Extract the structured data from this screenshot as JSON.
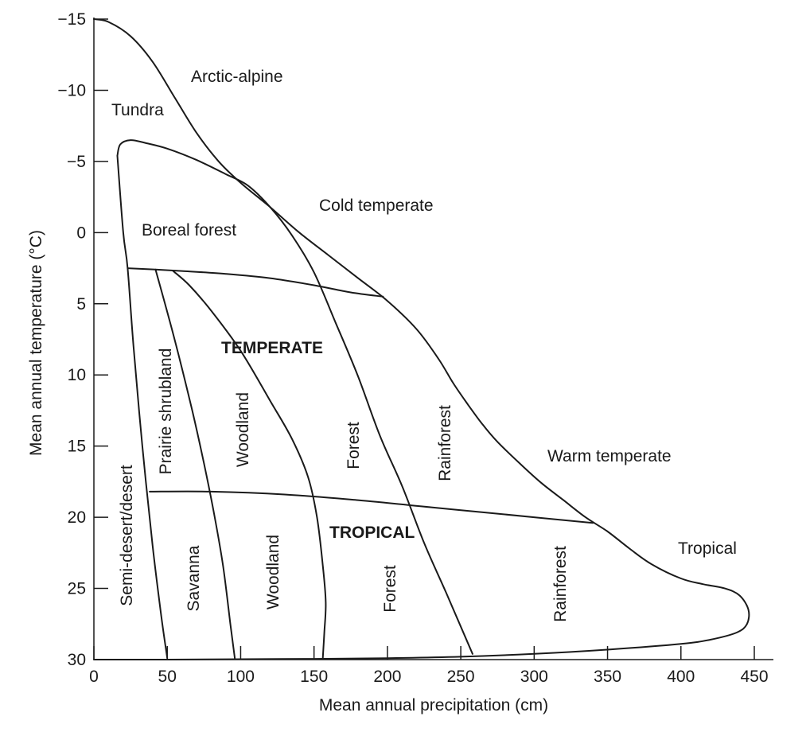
{
  "chart_data": {
    "type": "diagram",
    "xlabel": "Mean annual precipitation (cm)",
    "ylabel": "Mean annual temperature (°C)",
    "xlim": [
      0,
      450
    ],
    "ylim": [
      -15,
      30
    ],
    "y_axis_inverted": true,
    "x_ticks": [
      0,
      50,
      100,
      150,
      200,
      250,
      300,
      350,
      400,
      450
    ],
    "y_ticks": [
      -15,
      -10,
      -5,
      0,
      5,
      10,
      15,
      20,
      25,
      30
    ],
    "y_tick_labels": [
      "−15",
      "−10",
      "−5",
      "0",
      "5",
      "10",
      "15",
      "20",
      "25",
      "30"
    ],
    "grid": false,
    "boundaries": [
      {
        "id": "outer",
        "points": [
          [
            0,
            -15
          ],
          [
            10,
            -14.8
          ],
          [
            25,
            -13.8
          ],
          [
            40,
            -12
          ],
          [
            55,
            -9.5
          ],
          [
            70,
            -7
          ],
          [
            85,
            -5
          ],
          [
            100,
            -3.5
          ],
          [
            120,
            -1.8
          ],
          [
            140,
            0
          ],
          [
            160,
            1.6
          ],
          [
            180,
            3.2
          ],
          [
            200,
            4.8
          ],
          [
            220,
            6.8
          ],
          [
            235,
            8.9
          ],
          [
            245,
            10.6
          ],
          [
            255,
            12.1
          ],
          [
            265,
            13.5
          ],
          [
            275,
            14.7
          ],
          [
            290,
            16.2
          ],
          [
            305,
            17.6
          ],
          [
            320,
            18.8
          ],
          [
            335,
            20
          ],
          [
            350,
            21
          ],
          [
            365,
            22.2
          ],
          [
            380,
            23.3
          ],
          [
            400,
            24.3
          ],
          [
            415,
            24.7
          ],
          [
            430,
            25
          ],
          [
            440,
            25.5
          ],
          [
            446,
            26.5
          ],
          [
            445,
            27.5
          ],
          [
            438,
            28.1
          ],
          [
            420,
            28.6
          ],
          [
            400,
            28.9
          ],
          [
            350,
            29.3
          ],
          [
            300,
            29.6
          ],
          [
            250,
            29.8
          ],
          [
            200,
            29.9
          ],
          [
            150,
            29.95
          ],
          [
            100,
            29.97
          ],
          [
            50,
            30
          ],
          [
            0,
            30
          ]
        ]
      },
      {
        "id": "boreal-upper",
        "points": [
          [
            16,
            -5.4
          ],
          [
            18,
            -6.2
          ],
          [
            25,
            -6.5
          ],
          [
            35,
            -6.3
          ],
          [
            50,
            -5.9
          ],
          [
            70,
            -5.1
          ],
          [
            90,
            -4.1
          ],
          [
            105,
            -3.3
          ],
          [
            120,
            -1.8
          ],
          [
            135,
            0.2
          ],
          [
            150,
            2.8
          ],
          [
            165,
            6.4
          ],
          [
            180,
            10.1
          ],
          [
            195,
            14.3
          ],
          [
            210,
            17.8
          ],
          [
            225,
            21.8
          ],
          [
            240,
            25.3
          ],
          [
            258,
            29.6
          ]
        ]
      },
      {
        "id": "boreal-left",
        "points": [
          [
            16,
            -5.4
          ],
          [
            20,
            0
          ],
          [
            23,
            2.5
          ],
          [
            27,
            8
          ],
          [
            33,
            15
          ],
          [
            40,
            22
          ],
          [
            46,
            27
          ],
          [
            50,
            29.9
          ]
        ]
      },
      {
        "id": "temperate-top",
        "points": [
          [
            23,
            2.5
          ],
          [
            42,
            2.6
          ],
          [
            60,
            2.7
          ],
          [
            90,
            2.9
          ],
          [
            120,
            3.2
          ],
          [
            150,
            3.7
          ],
          [
            175,
            4.2
          ],
          [
            197,
            4.5
          ]
        ]
      },
      {
        "id": "prairie-woodland",
        "points": [
          [
            42,
            2.6
          ],
          [
            55,
            7.5
          ],
          [
            67,
            12.5
          ],
          [
            75,
            16.2
          ],
          [
            82,
            19.8
          ],
          [
            88,
            23.4
          ],
          [
            93,
            27.5
          ],
          [
            96,
            29.9
          ]
        ]
      },
      {
        "id": "woodland-forest",
        "points": [
          [
            54,
            2.7
          ],
          [
            65,
            3.7
          ],
          [
            80,
            5.5
          ],
          [
            100,
            8.3
          ],
          [
            120,
            11.8
          ],
          [
            135,
            14.5
          ],
          [
            146,
            17.2
          ],
          [
            152,
            20
          ],
          [
            156,
            23.4
          ],
          [
            158,
            26
          ],
          [
            157,
            28.1
          ],
          [
            156,
            29.9
          ]
        ]
      },
      {
        "id": "tropical-top",
        "points": [
          [
            38,
            18.2
          ],
          [
            80,
            18.2
          ],
          [
            130,
            18.4
          ],
          [
            180,
            18.8
          ],
          [
            230,
            19.3
          ],
          [
            280,
            19.8
          ],
          [
            340,
            20.4
          ]
        ]
      }
    ],
    "labels": [
      {
        "id": "arctic-alpine",
        "text": "Arctic-alpine"
      },
      {
        "id": "tundra",
        "text": "Tundra"
      },
      {
        "id": "cold-temperate",
        "text": "Cold temperate"
      },
      {
        "id": "boreal-forest",
        "text": "Boreal forest"
      },
      {
        "id": "temperate",
        "text": "TEMPERATE"
      },
      {
        "id": "prairie-shrubland",
        "text": "Prairie shrubland"
      },
      {
        "id": "woodland-temperate",
        "text": "Woodland"
      },
      {
        "id": "forest-temperate",
        "text": "Forest"
      },
      {
        "id": "rainforest-temperate",
        "text": "Rainforest"
      },
      {
        "id": "warm-temperate",
        "text": "Warm temperate"
      },
      {
        "id": "semi-desert",
        "text": "Semi-desert/desert"
      },
      {
        "id": "tropical-caps",
        "text": "TROPICAL"
      },
      {
        "id": "savanna",
        "text": "Savanna"
      },
      {
        "id": "woodland-tropical",
        "text": "Woodland"
      },
      {
        "id": "forest-tropical",
        "text": "Forest"
      },
      {
        "id": "rainforest-tropical",
        "text": "Rainforest"
      },
      {
        "id": "tropical",
        "text": "Tropical"
      }
    ]
  }
}
